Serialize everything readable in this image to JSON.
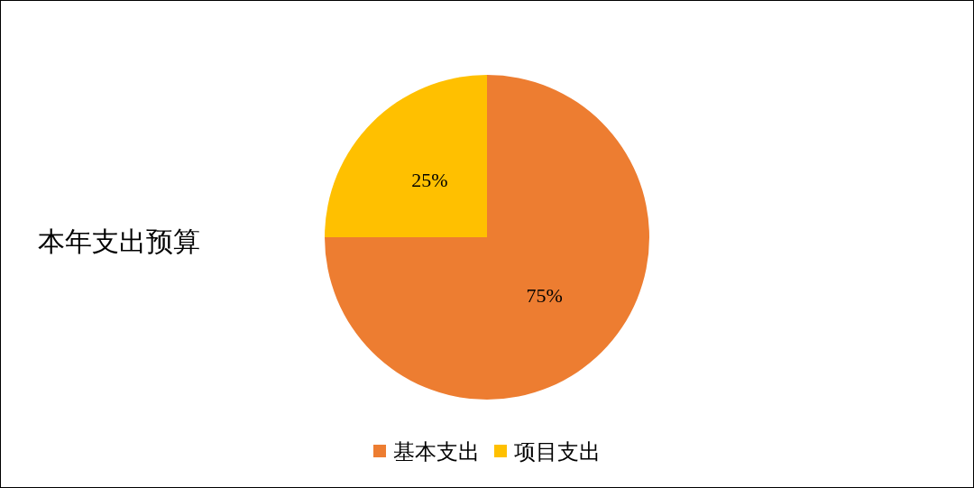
{
  "chart_data": {
    "type": "pie",
    "title": "本年支出预算",
    "categories": [
      "基本支出",
      "项目支出"
    ],
    "values": [
      75,
      25
    ],
    "colors": [
      "#ed7d31",
      "#ffc000"
    ],
    "value_labels": [
      "75%",
      "25%"
    ],
    "legend": "bottom"
  }
}
